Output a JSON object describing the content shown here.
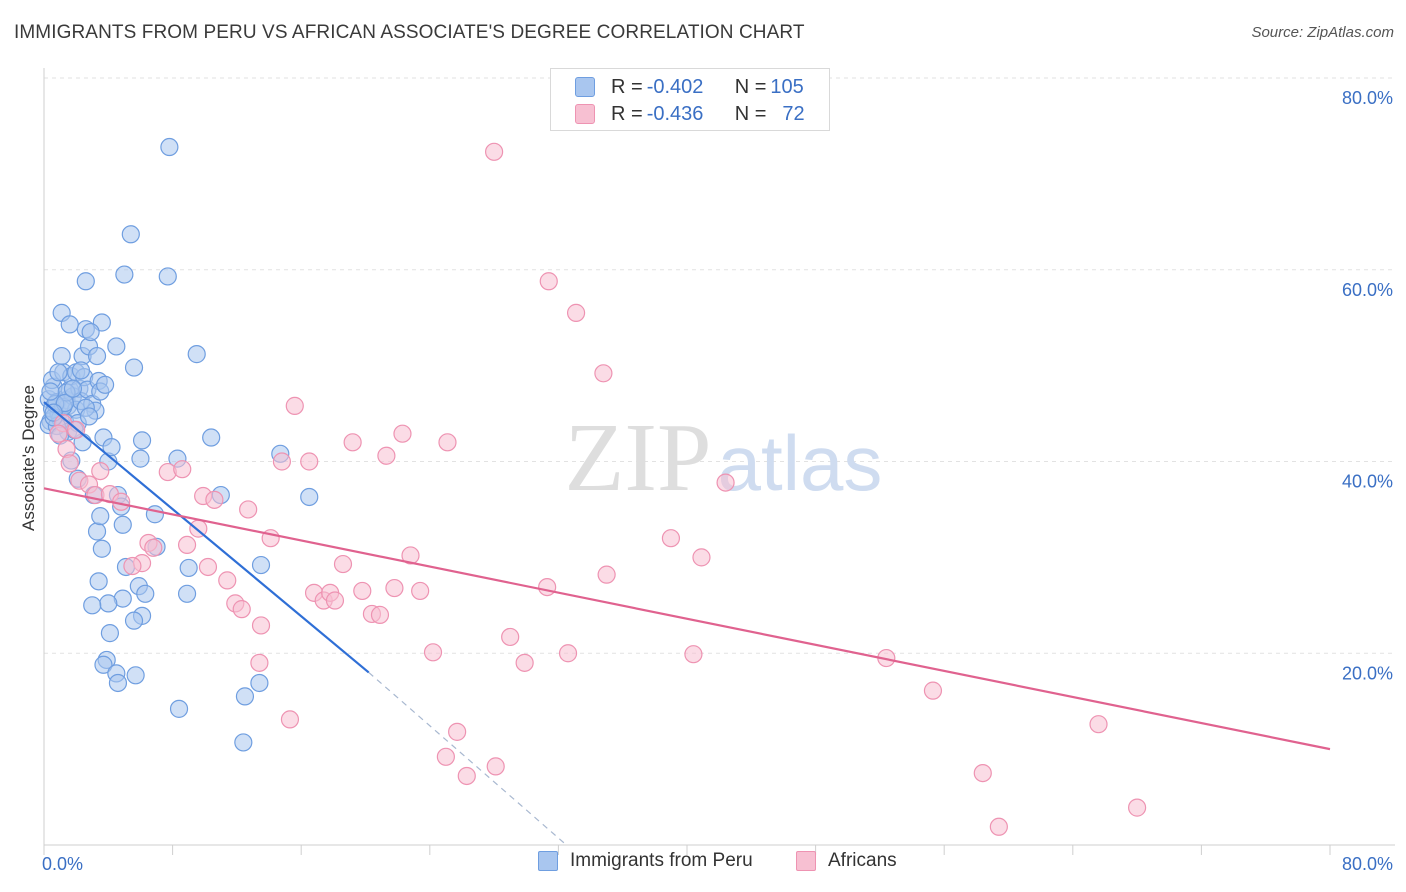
{
  "header": {
    "title": "IMMIGRANTS FROM PERU VS AFRICAN ASSOCIATE'S DEGREE CORRELATION CHART",
    "source": "Source: ZipAtlas.com"
  },
  "watermark": {
    "zip": "ZIP",
    "atlas": "atlas"
  },
  "legend_top": [
    {
      "r_label": "R = ",
      "r_value": "-0.402",
      "n_label": "N = ",
      "n_value": "105"
    },
    {
      "r_label": "R = ",
      "r_value": "-0.436",
      "n_label": "N = ",
      "n_value": "72"
    }
  ],
  "legend_bottom": [
    {
      "label": "Immigrants from Peru"
    },
    {
      "label": "Africans"
    }
  ],
  "colors": {
    "blue_fill": "#a9c6ef",
    "blue_stroke": "#6f9ee0",
    "blue_line": "#2f6fd6",
    "pink_fill": "#f7c0d2",
    "pink_stroke": "#ee93b2",
    "pink_line": "#e0628f",
    "tick_label": "#3a6fc4",
    "grid": "#e2e2e2"
  },
  "chart_data": {
    "type": "scatter",
    "title": "IMMIGRANTS FROM PERU VS AFRICAN ASSOCIATE'S DEGREE CORRELATION CHART",
    "xlabel": "",
    "ylabel": "Associate's Degree",
    "xlim": [
      0,
      80
    ],
    "ylim": [
      0,
      80
    ],
    "x_tick_labels": [
      "0.0%",
      "80.0%"
    ],
    "y_tick_labels": [
      "20.0%",
      "40.0%",
      "60.0%",
      "80.0%"
    ],
    "y_ticks": [
      20,
      40,
      60,
      80
    ],
    "grid": true,
    "series": [
      {
        "name": "Immigrants from Peru",
        "r": -0.402,
        "n": 105,
        "trend": {
          "x": [
            0,
            20.2
          ],
          "y": [
            46.2,
            18.0
          ],
          "dashed_to": [
            32.5,
            0
          ]
        },
        "points": [
          [
            0.3,
            46.5
          ],
          [
            0.5,
            45.5
          ],
          [
            0.4,
            44.2
          ],
          [
            0.6,
            47.8
          ],
          [
            0.8,
            46.2
          ],
          [
            0.3,
            43.8
          ],
          [
            0.9,
            45.0
          ],
          [
            1.0,
            44.5
          ],
          [
            0.5,
            48.5
          ],
          [
            1.2,
            49.3
          ],
          [
            1.1,
            51.0
          ],
          [
            1.3,
            44.2
          ],
          [
            1.4,
            46.4
          ],
          [
            1.5,
            45.8
          ],
          [
            1.6,
            47.5
          ],
          [
            1.5,
            43.1
          ],
          [
            1.7,
            48.9
          ],
          [
            1.8,
            46.8
          ],
          [
            2.0,
            45.4
          ],
          [
            2.1,
            44.0
          ],
          [
            2.0,
            49.3
          ],
          [
            2.2,
            47.6
          ],
          [
            2.3,
            46.3
          ],
          [
            2.4,
            51.0
          ],
          [
            2.5,
            48.8
          ],
          [
            2.6,
            53.8
          ],
          [
            2.7,
            47.5
          ],
          [
            2.8,
            52.0
          ],
          [
            3.0,
            46.0
          ],
          [
            3.2,
            45.3
          ],
          [
            3.3,
            51.0
          ],
          [
            3.4,
            48.4
          ],
          [
            3.5,
            47.3
          ],
          [
            3.6,
            54.5
          ],
          [
            3.7,
            42.5
          ],
          [
            3.8,
            48.0
          ],
          [
            4.0,
            40.0
          ],
          [
            4.2,
            41.5
          ],
          [
            4.5,
            52.0
          ],
          [
            4.6,
            36.5
          ],
          [
            5.6,
            49.8
          ],
          [
            6.0,
            40.3
          ],
          [
            1.1,
            55.5
          ],
          [
            1.6,
            54.3
          ],
          [
            2.9,
            53.5
          ],
          [
            2.6,
            58.8
          ],
          [
            5.0,
            59.5
          ],
          [
            7.7,
            59.3
          ],
          [
            5.4,
            63.7
          ],
          [
            7.8,
            72.8
          ],
          [
            9.5,
            51.2
          ],
          [
            6.1,
            42.2
          ],
          [
            8.3,
            40.3
          ],
          [
            10.4,
            42.5
          ],
          [
            11.0,
            36.5
          ],
          [
            14.7,
            40.8
          ],
          [
            16.5,
            36.3
          ],
          [
            13.5,
            29.2
          ],
          [
            9.0,
            28.9
          ],
          [
            8.9,
            26.2
          ],
          [
            7.0,
            31.1
          ],
          [
            6.9,
            34.5
          ],
          [
            4.8,
            35.3
          ],
          [
            4.9,
            33.4
          ],
          [
            5.1,
            29.0
          ],
          [
            3.3,
            32.7
          ],
          [
            3.5,
            34.3
          ],
          [
            3.6,
            30.9
          ],
          [
            3.4,
            27.5
          ],
          [
            5.9,
            27.0
          ],
          [
            4.9,
            25.7
          ],
          [
            6.3,
            26.2
          ],
          [
            6.1,
            23.9
          ],
          [
            5.6,
            23.4
          ],
          [
            4.0,
            25.2
          ],
          [
            3.0,
            25.0
          ],
          [
            4.1,
            22.1
          ],
          [
            3.9,
            19.3
          ],
          [
            3.7,
            18.8
          ],
          [
            4.5,
            17.9
          ],
          [
            4.6,
            16.9
          ],
          [
            5.7,
            17.7
          ],
          [
            8.4,
            14.2
          ],
          [
            12.5,
            15.5
          ],
          [
            13.4,
            16.9
          ],
          [
            12.4,
            10.7
          ],
          [
            2.4,
            42.0
          ],
          [
            0.8,
            43.7
          ],
          [
            1.2,
            45.7
          ],
          [
            0.6,
            44.6
          ],
          [
            1.9,
            43.3
          ],
          [
            2.6,
            45.6
          ],
          [
            1.4,
            47.2
          ],
          [
            0.9,
            49.3
          ],
          [
            1.7,
            40.1
          ],
          [
            2.1,
            38.2
          ],
          [
            3.1,
            36.5
          ],
          [
            0.7,
            46.0
          ],
          [
            1.3,
            46.1
          ],
          [
            0.4,
            47.3
          ],
          [
            2.8,
            44.7
          ],
          [
            1.0,
            42.7
          ],
          [
            1.8,
            47.6
          ],
          [
            2.3,
            49.5
          ],
          [
            0.6,
            45.1
          ]
        ]
      },
      {
        "name": "Africans",
        "r": -0.436,
        "n": 72,
        "trend": {
          "x": [
            0,
            80
          ],
          "y": [
            37.2,
            10.0
          ]
        },
        "points": [
          [
            1.2,
            44.0
          ],
          [
            1.4,
            41.3
          ],
          [
            1.6,
            39.8
          ],
          [
            2.0,
            43.3
          ],
          [
            2.2,
            38.0
          ],
          [
            2.8,
            37.6
          ],
          [
            3.2,
            36.5
          ],
          [
            3.5,
            39.0
          ],
          [
            4.1,
            36.6
          ],
          [
            4.8,
            35.8
          ],
          [
            6.5,
            31.5
          ],
          [
            6.1,
            29.4
          ],
          [
            6.8,
            31.0
          ],
          [
            7.7,
            38.9
          ],
          [
            8.6,
            39.2
          ],
          [
            8.9,
            31.3
          ],
          [
            9.6,
            33.0
          ],
          [
            9.9,
            36.4
          ],
          [
            10.2,
            29.0
          ],
          [
            10.6,
            36.0
          ],
          [
            11.4,
            27.6
          ],
          [
            11.9,
            25.2
          ],
          [
            12.3,
            24.6
          ],
          [
            12.7,
            35.0
          ],
          [
            13.5,
            22.9
          ],
          [
            13.4,
            19.0
          ],
          [
            14.1,
            32.0
          ],
          [
            14.8,
            40.0
          ],
          [
            15.3,
            13.1
          ],
          [
            15.6,
            45.8
          ],
          [
            16.5,
            40.0
          ],
          [
            16.8,
            26.3
          ],
          [
            17.4,
            25.5
          ],
          [
            17.8,
            26.3
          ],
          [
            18.1,
            25.5
          ],
          [
            18.6,
            29.3
          ],
          [
            19.2,
            42.0
          ],
          [
            19.8,
            26.5
          ],
          [
            20.4,
            24.1
          ],
          [
            20.9,
            24.0
          ],
          [
            21.3,
            40.6
          ],
          [
            21.8,
            26.8
          ],
          [
            22.3,
            42.9
          ],
          [
            22.8,
            30.2
          ],
          [
            23.4,
            26.5
          ],
          [
            24.2,
            20.1
          ],
          [
            25.1,
            42.0
          ],
          [
            25.7,
            11.8
          ],
          [
            25.0,
            9.2
          ],
          [
            26.3,
            7.2
          ],
          [
            28.0,
            72.3
          ],
          [
            28.1,
            8.2
          ],
          [
            29.0,
            21.7
          ],
          [
            31.4,
            58.8
          ],
          [
            31.3,
            26.9
          ],
          [
            33.1,
            55.5
          ],
          [
            29.9,
            19.0
          ],
          [
            34.8,
            49.2
          ],
          [
            32.6,
            20.0
          ],
          [
            35.0,
            28.2
          ],
          [
            39.0,
            32.0
          ],
          [
            40.9,
            30.0
          ],
          [
            42.4,
            37.8
          ],
          [
            40.4,
            19.9
          ],
          [
            52.4,
            19.5
          ],
          [
            55.3,
            16.1
          ],
          [
            58.4,
            7.5
          ],
          [
            59.4,
            1.9
          ],
          [
            65.6,
            12.6
          ],
          [
            68.0,
            3.9
          ],
          [
            0.9,
            42.9
          ],
          [
            5.5,
            29.1
          ]
        ]
      }
    ]
  }
}
